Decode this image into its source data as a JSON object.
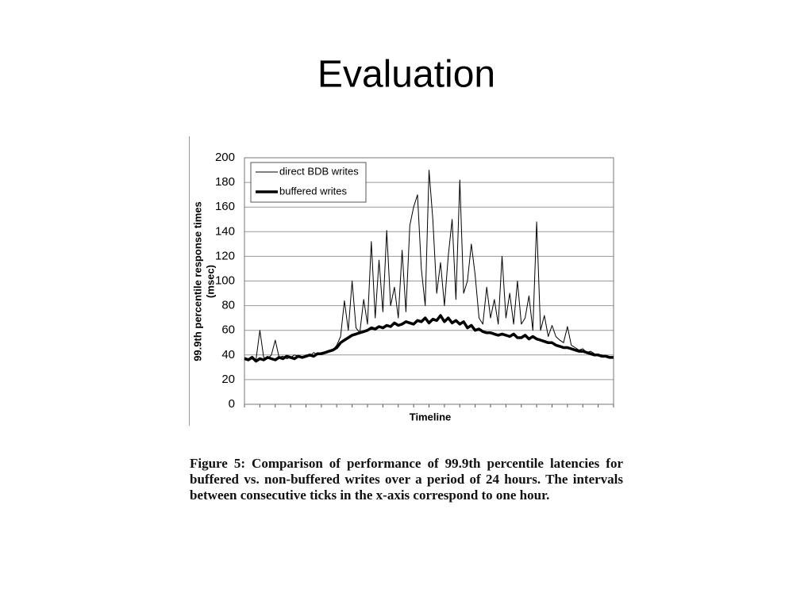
{
  "title": "Evaluation",
  "chart_data": {
    "type": "line",
    "ylabel": [
      "99.9th percentile response times",
      "(msec)"
    ],
    "xlabel": "Timeline",
    "xlim": [
      0,
      24
    ],
    "xticks": [
      0,
      1,
      2,
      3,
      4,
      5,
      6,
      7,
      8,
      9,
      10,
      11,
      12,
      13,
      14,
      15,
      16,
      17,
      18,
      19,
      20,
      21,
      22,
      23,
      24
    ],
    "ylim": [
      0,
      200
    ],
    "yticks": [
      0,
      20,
      40,
      60,
      80,
      100,
      120,
      140,
      160,
      180,
      200
    ],
    "grid": true,
    "legend": "upper left",
    "x": [
      0,
      0.25,
      0.5,
      0.75,
      1,
      1.25,
      1.5,
      1.75,
      2,
      2.25,
      2.5,
      2.75,
      3,
      3.25,
      3.5,
      3.75,
      4,
      4.25,
      4.5,
      4.75,
      5,
      5.25,
      5.5,
      5.75,
      6,
      6.25,
      6.5,
      6.75,
      7,
      7.25,
      7.5,
      7.75,
      8,
      8.25,
      8.5,
      8.75,
      9,
      9.25,
      9.5,
      9.75,
      10,
      10.25,
      10.5,
      10.75,
      11,
      11.25,
      11.5,
      11.75,
      12,
      12.25,
      12.5,
      12.75,
      13,
      13.25,
      13.5,
      13.75,
      14,
      14.25,
      14.5,
      14.75,
      15,
      15.25,
      15.5,
      15.75,
      16,
      16.25,
      16.5,
      16.75,
      17,
      17.25,
      17.5,
      17.75,
      18,
      18.25,
      18.5,
      18.75,
      19,
      19.25,
      19.5,
      19.75,
      20,
      20.25,
      20.5,
      20.75,
      21,
      21.25,
      21.5,
      21.75,
      22,
      22.25,
      22.5,
      22.75,
      23,
      23.25,
      23.5,
      23.75,
      24
    ],
    "series": [
      {
        "name": "direct BDB writes",
        "color": "#000000",
        "values": [
          38,
          37,
          39,
          36,
          60,
          38,
          37,
          40,
          52,
          38,
          39,
          37,
          38,
          40,
          39,
          38,
          40,
          39,
          42,
          40,
          42,
          41,
          43,
          44,
          48,
          55,
          84,
          60,
          100,
          62,
          58,
          85,
          65,
          132,
          70,
          117,
          75,
          141,
          80,
          95,
          70,
          125,
          75,
          145,
          160,
          170,
          110,
          80,
          190,
          150,
          90,
          115,
          80,
          120,
          150,
          85,
          182,
          90,
          100,
          130,
          105,
          70,
          65,
          95,
          70,
          85,
          65,
          120,
          70,
          90,
          65,
          100,
          65,
          70,
          88,
          60,
          148,
          60,
          72,
          55,
          64,
          55,
          52,
          50,
          63,
          48,
          46,
          44,
          45,
          42,
          43,
          41,
          40,
          40,
          39,
          38,
          38
        ]
      },
      {
        "name": "buffered writes",
        "color": "#000000",
        "values": [
          37,
          36,
          38,
          35,
          37,
          36,
          38,
          37,
          36,
          38,
          37,
          39,
          38,
          37,
          39,
          38,
          39,
          40,
          39,
          41,
          41,
          42,
          43,
          44,
          46,
          50,
          52,
          54,
          56,
          57,
          58,
          59,
          60,
          62,
          61,
          63,
          62,
          64,
          63,
          66,
          64,
          65,
          67,
          66,
          65,
          68,
          67,
          70,
          66,
          69,
          68,
          72,
          67,
          70,
          66,
          68,
          65,
          67,
          62,
          64,
          60,
          61,
          59,
          58,
          58,
          57,
          56,
          57,
          56,
          55,
          57,
          54,
          54,
          56,
          53,
          55,
          53,
          52,
          51,
          50,
          50,
          48,
          47,
          46,
          46,
          45,
          44,
          43,
          43,
          42,
          41,
          40,
          40,
          39,
          39,
          38,
          38
        ]
      }
    ]
  },
  "caption": "Figure 5: Comparison of performance of 99.9th percentile latencies for buffered vs. non-buffered writes over a period of 24 hours. The intervals between consecutive ticks in the x-axis correspond to one hour."
}
